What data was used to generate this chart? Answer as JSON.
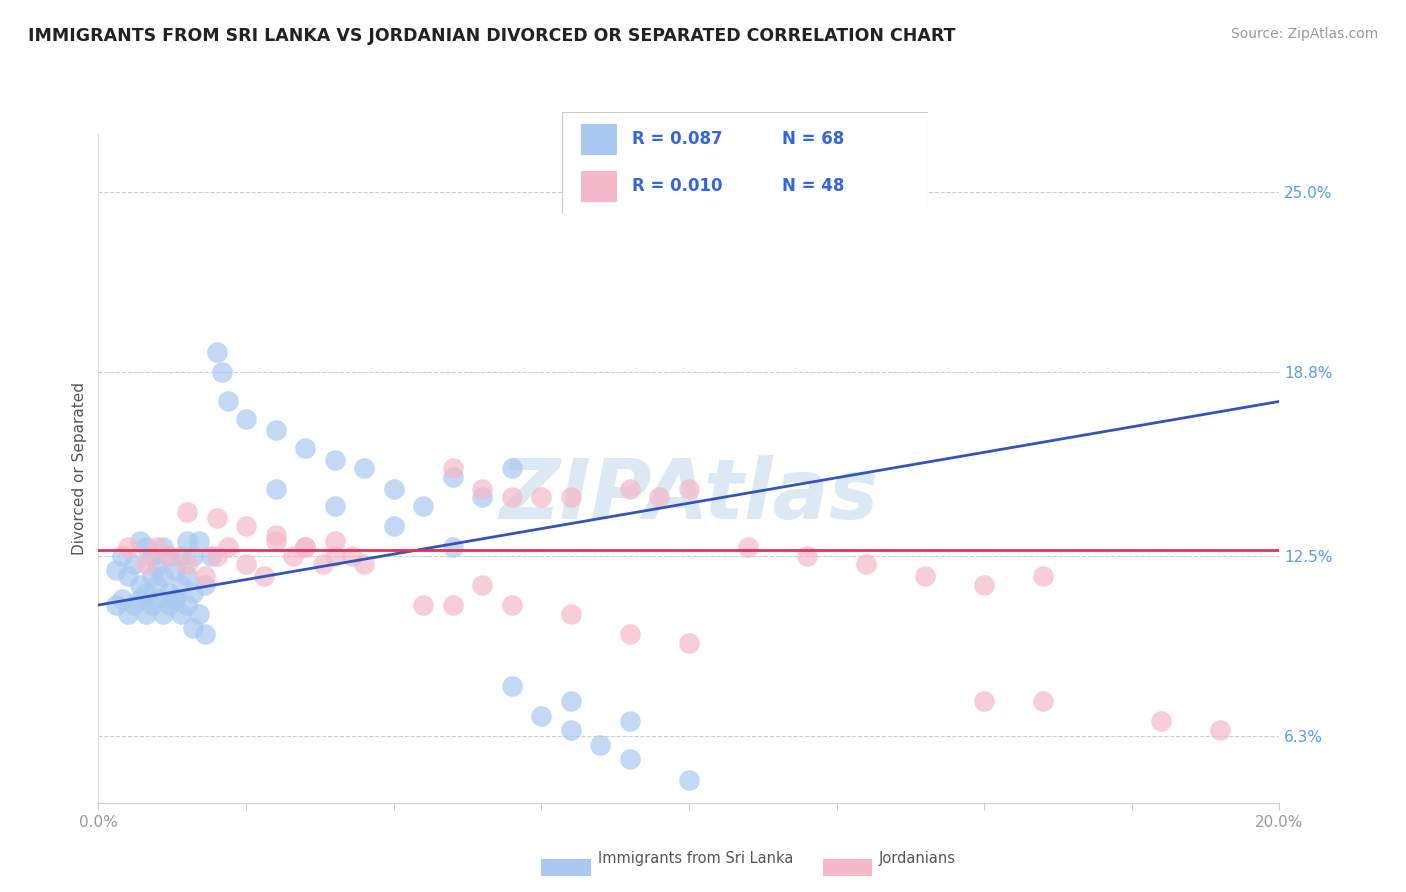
{
  "title": "IMMIGRANTS FROM SRI LANKA VS JORDANIAN DIVORCED OR SEPARATED CORRELATION CHART",
  "source": "Source: ZipAtlas.com",
  "ylabel": "Divorced or Separated",
  "watermark": "ZIPAtlas",
  "xlim": [
    0.0,
    0.2
  ],
  "ylim": [
    0.04,
    0.27
  ],
  "yticks": [
    0.063,
    0.125,
    0.188,
    0.25
  ],
  "ytick_labels": [
    "6.3%",
    "12.5%",
    "18.8%",
    "25.0%"
  ],
  "series": [
    {
      "name": "Immigrants from Sri Lanka",
      "R": 0.087,
      "N": 68,
      "color": "#aac8f0",
      "trend_color": "#3355bb",
      "trend_style": "-"
    },
    {
      "name": "Jordanians",
      "R": 0.01,
      "N": 48,
      "color": "#f5b8c8",
      "trend_color": "#dd3355",
      "trend_style": "-"
    }
  ],
  "blue_x": [
    0.003,
    0.004,
    0.005,
    0.006,
    0.007,
    0.007,
    0.008,
    0.008,
    0.009,
    0.009,
    0.01,
    0.01,
    0.011,
    0.011,
    0.012,
    0.012,
    0.013,
    0.013,
    0.014,
    0.014,
    0.015,
    0.015,
    0.016,
    0.016,
    0.017,
    0.018,
    0.019,
    0.02,
    0.021,
    0.022,
    0.003,
    0.004,
    0.005,
    0.006,
    0.007,
    0.008,
    0.009,
    0.01,
    0.011,
    0.012,
    0.013,
    0.014,
    0.015,
    0.016,
    0.017,
    0.018,
    0.025,
    0.03,
    0.035,
    0.04,
    0.045,
    0.05,
    0.055,
    0.06,
    0.065,
    0.07,
    0.075,
    0.08,
    0.085,
    0.09,
    0.03,
    0.04,
    0.05,
    0.06,
    0.07,
    0.08,
    0.09,
    0.1
  ],
  "blue_y": [
    0.12,
    0.125,
    0.118,
    0.122,
    0.13,
    0.115,
    0.128,
    0.112,
    0.125,
    0.118,
    0.121,
    0.115,
    0.128,
    0.118,
    0.125,
    0.112,
    0.12,
    0.11,
    0.125,
    0.115,
    0.13,
    0.118,
    0.125,
    0.112,
    0.13,
    0.115,
    0.125,
    0.195,
    0.188,
    0.178,
    0.108,
    0.11,
    0.105,
    0.108,
    0.11,
    0.105,
    0.108,
    0.11,
    0.105,
    0.108,
    0.11,
    0.105,
    0.108,
    0.1,
    0.105,
    0.098,
    0.172,
    0.168,
    0.162,
    0.158,
    0.155,
    0.148,
    0.142,
    0.152,
    0.145,
    0.155,
    0.07,
    0.065,
    0.06,
    0.055,
    0.148,
    0.142,
    0.135,
    0.128,
    0.08,
    0.075,
    0.068,
    0.048
  ],
  "pink_x": [
    0.005,
    0.008,
    0.01,
    0.012,
    0.015,
    0.018,
    0.02,
    0.022,
    0.025,
    0.028,
    0.03,
    0.033,
    0.035,
    0.038,
    0.04,
    0.043,
    0.06,
    0.065,
    0.07,
    0.075,
    0.08,
    0.09,
    0.095,
    0.1,
    0.11,
    0.12,
    0.13,
    0.14,
    0.15,
    0.16,
    0.015,
    0.02,
    0.025,
    0.03,
    0.035,
    0.04,
    0.045,
    0.055,
    0.06,
    0.065,
    0.07,
    0.08,
    0.09,
    0.1,
    0.15,
    0.16,
    0.18,
    0.19
  ],
  "pink_y": [
    0.128,
    0.122,
    0.128,
    0.125,
    0.122,
    0.118,
    0.125,
    0.128,
    0.122,
    0.118,
    0.13,
    0.125,
    0.128,
    0.122,
    0.13,
    0.125,
    0.155,
    0.148,
    0.145,
    0.145,
    0.145,
    0.148,
    0.145,
    0.148,
    0.128,
    0.125,
    0.122,
    0.118,
    0.115,
    0.118,
    0.14,
    0.138,
    0.135,
    0.132,
    0.128,
    0.125,
    0.122,
    0.108,
    0.108,
    0.115,
    0.108,
    0.105,
    0.098,
    0.095,
    0.075,
    0.075,
    0.068,
    0.065
  ],
  "blue_trend": [
    0.108,
    0.178
  ],
  "pink_trend": [
    0.127,
    0.127
  ],
  "title_color": "#222222",
  "title_fontsize": 12.5,
  "source_color": "#999999",
  "source_fontsize": 10,
  "axis_label_color": "#555555",
  "tick_color": "#999999",
  "grid_color": "#cccccc",
  "watermark_color": "#dde8f5",
  "watermark_fontsize": 60,
  "legend_color": "#3366dd"
}
